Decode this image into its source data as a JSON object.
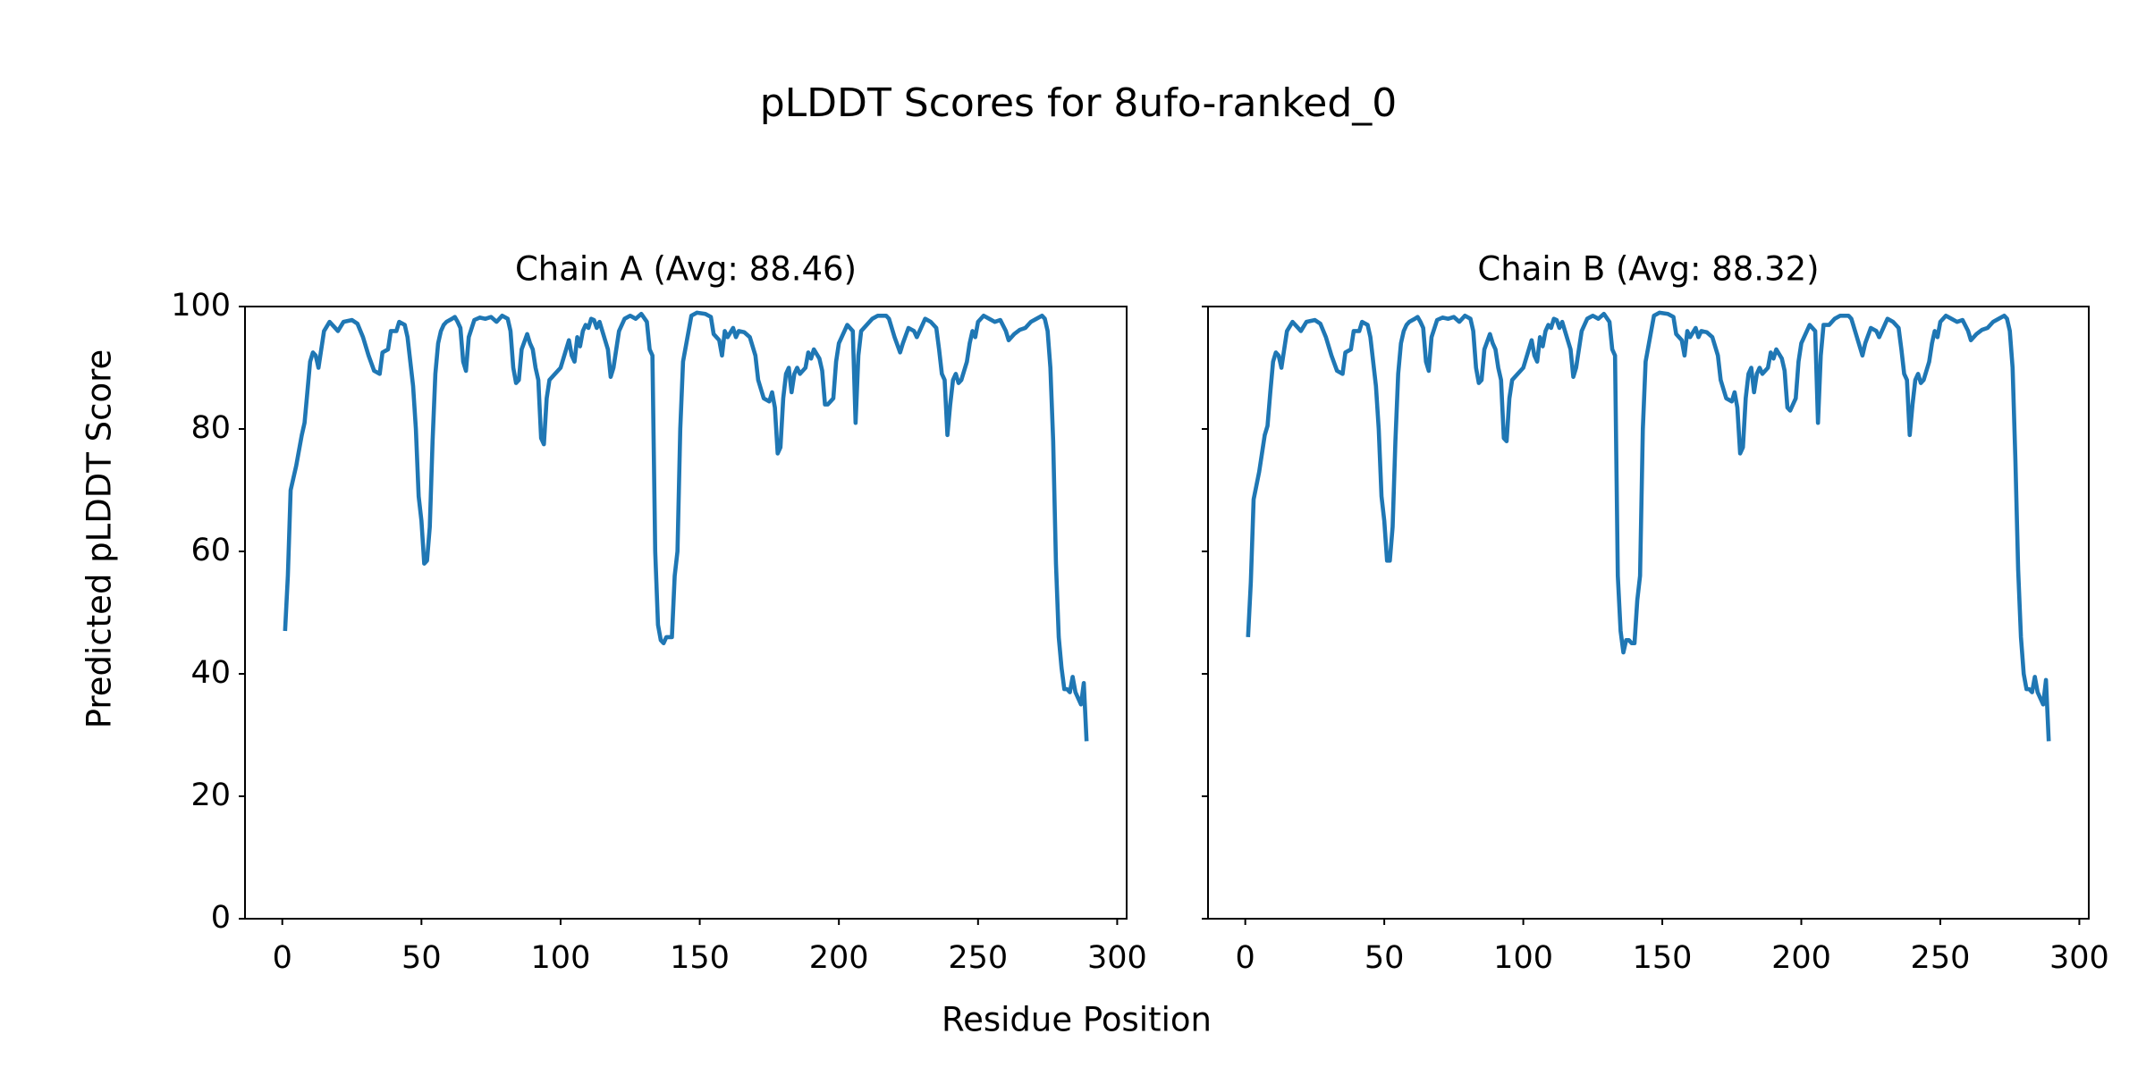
{
  "title": "pLDDT Scores for 8ufo-ranked_0",
  "xlabel": "Residue Position",
  "ylabel": "Predicted pLDDT Score",
  "chart_data": [
    {
      "type": "line",
      "title": "Chain A (Avg: 88.46)",
      "color": "#1f77b4",
      "xlim": [
        -13.4,
        303.4
      ],
      "xticks": [
        0,
        50,
        100,
        150,
        200,
        250,
        300
      ],
      "ylim": [
        0,
        100
      ],
      "yticks": [
        0,
        20,
        40,
        60,
        80,
        100
      ],
      "x": [
        1,
        2,
        3,
        5,
        7,
        8,
        9,
        10,
        11,
        12,
        13,
        14,
        15,
        17,
        18,
        19,
        20,
        22,
        25,
        27,
        29,
        31,
        33,
        35,
        36,
        38,
        39,
        41,
        42,
        44,
        45,
        47,
        48,
        49,
        50,
        51,
        52,
        53,
        54,
        55,
        56,
        57,
        58,
        59,
        61,
        62,
        63,
        64,
        65,
        66,
        67,
        69,
        71,
        73,
        75,
        77,
        79,
        81,
        82,
        83,
        84,
        85,
        86,
        88,
        89,
        90,
        91,
        92,
        93,
        94,
        95,
        96,
        98,
        100,
        101,
        102,
        103,
        104,
        105,
        106,
        107,
        108,
        109,
        110,
        111,
        112,
        113,
        114,
        115,
        117,
        118,
        119,
        121,
        123,
        125,
        127,
        129,
        131,
        132,
        133,
        134,
        135,
        136,
        137,
        138,
        139,
        140,
        141,
        142,
        143,
        144,
        146,
        147,
        149,
        152,
        154,
        155,
        157,
        158,
        159,
        160,
        162,
        163,
        164,
        166,
        168,
        170,
        171,
        172,
        173,
        175,
        176,
        177,
        178,
        179,
        180,
        181,
        182,
        183,
        184,
        185,
        186,
        188,
        189,
        190,
        191,
        193,
        194,
        195,
        196,
        197,
        198,
        199,
        200,
        202,
        203,
        205,
        206,
        207,
        208,
        210,
        212,
        214,
        217,
        218,
        220,
        222,
        223,
        225,
        227,
        228,
        230,
        231,
        233,
        235,
        236,
        237,
        238,
        239,
        240,
        241,
        242,
        243,
        244,
        246,
        247,
        248,
        249,
        250,
        252,
        254,
        256,
        258,
        260,
        261,
        263,
        265,
        267,
        269,
        271,
        273,
        274,
        275,
        276,
        277,
        278,
        279,
        280,
        281,
        282,
        283,
        284,
        285,
        286,
        287,
        288,
        289
      ],
      "values": [
        47,
        56,
        70,
        74,
        79,
        81,
        86,
        91,
        92.5,
        92,
        90,
        93,
        96,
        97.5,
        97,
        96.5,
        96,
        97.5,
        97.8,
        97.2,
        95,
        92,
        89.5,
        89,
        92.5,
        93,
        96,
        96,
        97.5,
        97,
        95,
        87,
        80,
        69,
        65,
        58,
        58.5,
        64,
        78,
        89,
        94,
        96,
        97,
        97.5,
        98,
        98.3,
        97.5,
        96.5,
        91,
        89.5,
        95,
        97.8,
        98.2,
        98,
        98.3,
        97.5,
        98.5,
        98,
        96,
        90,
        87.5,
        88,
        93,
        95.5,
        94,
        93,
        90,
        88,
        78.5,
        77.5,
        85,
        88,
        89,
        90,
        91.5,
        93,
        94.5,
        92,
        91,
        95,
        93.5,
        96,
        97,
        96.5,
        98,
        97.8,
        96.5,
        97.5,
        96,
        93,
        88.5,
        90,
        96,
        98,
        98.5,
        98,
        98.8,
        97.5,
        93,
        92,
        60,
        48,
        45.5,
        45,
        46,
        46,
        46,
        56,
        60,
        80,
        91,
        96,
        98.5,
        99,
        98.8,
        98.3,
        95.5,
        94.5,
        92,
        96,
        95,
        96.5,
        95,
        96,
        95.8,
        95,
        92,
        88,
        86.5,
        85,
        84.5,
        86,
        83.5,
        76,
        77,
        85,
        89,
        90,
        86,
        89,
        90,
        89,
        90,
        92.5,
        91.5,
        93,
        91.5,
        89.5,
        84,
        84,
        84.5,
        85,
        91,
        94,
        96,
        97,
        96,
        81,
        92,
        96,
        97,
        98,
        98.5,
        98.5,
        98,
        95,
        92.5,
        94,
        96.5,
        96,
        95,
        97,
        98,
        97.5,
        96.5,
        93,
        89,
        88,
        79,
        84,
        88,
        89,
        87.5,
        88,
        91,
        94,
        96,
        95,
        97.5,
        98.5,
        98,
        97.5,
        97.8,
        96,
        94.5,
        95.5,
        96.2,
        96.5,
        97.5,
        98,
        98.5,
        98,
        96,
        90,
        78,
        58,
        46,
        41,
        37.5,
        37.5,
        37,
        39.5,
        37,
        36,
        35,
        38.5,
        29
      ]
    },
    {
      "type": "line",
      "title": "Chain B (Avg: 88.32)",
      "color": "#1f77b4",
      "xlim": [
        -13.4,
        303.4
      ],
      "xticks": [
        0,
        50,
        100,
        150,
        200,
        250,
        300
      ],
      "ylim": [
        0,
        100
      ],
      "yticks": [
        0,
        20,
        40,
        60,
        80,
        100
      ],
      "x": [
        1,
        2,
        3,
        5,
        7,
        8,
        9,
        10,
        11,
        12,
        13,
        14,
        15,
        17,
        18,
        19,
        20,
        22,
        25,
        27,
        29,
        31,
        33,
        35,
        36,
        38,
        39,
        41,
        42,
        44,
        45,
        47,
        48,
        49,
        50,
        51,
        52,
        53,
        54,
        55,
        56,
        57,
        58,
        59,
        61,
        62,
        63,
        64,
        65,
        66,
        67,
        69,
        71,
        73,
        75,
        77,
        79,
        81,
        82,
        83,
        84,
        85,
        86,
        88,
        89,
        90,
        91,
        92,
        93,
        94,
        95,
        96,
        98,
        100,
        101,
        102,
        103,
        104,
        105,
        106,
        107,
        108,
        109,
        110,
        111,
        112,
        113,
        114,
        115,
        117,
        118,
        119,
        121,
        123,
        125,
        127,
        129,
        131,
        132,
        133,
        134,
        135,
        136,
        137,
        138,
        139,
        140,
        141,
        142,
        143,
        144,
        146,
        147,
        149,
        152,
        154,
        155,
        157,
        158,
        159,
        160,
        162,
        163,
        164,
        166,
        168,
        170,
        171,
        172,
        173,
        175,
        176,
        177,
        178,
        179,
        180,
        181,
        182,
        183,
        184,
        185,
        186,
        188,
        189,
        190,
        191,
        193,
        194,
        195,
        196,
        197,
        198,
        199,
        200,
        202,
        203,
        205,
        206,
        207,
        208,
        210,
        212,
        214,
        217,
        218,
        220,
        222,
        223,
        225,
        227,
        228,
        230,
        231,
        233,
        235,
        236,
        237,
        238,
        239,
        240,
        241,
        242,
        243,
        244,
        246,
        247,
        248,
        249,
        250,
        252,
        254,
        256,
        258,
        260,
        261,
        263,
        265,
        267,
        269,
        271,
        273,
        274,
        275,
        276,
        277,
        278,
        279,
        280,
        281,
        282,
        283,
        284,
        285,
        286,
        287,
        288,
        289
      ],
      "values": [
        46,
        55,
        68.5,
        73,
        79,
        80.5,
        86,
        91,
        92.5,
        92,
        90,
        93,
        96,
        97.5,
        97,
        96.5,
        96,
        97.5,
        97.8,
        97.2,
        95,
        92,
        89.5,
        89,
        92.5,
        93,
        96,
        96,
        97.5,
        97,
        95,
        87,
        80,
        69,
        65,
        58.5,
        58.5,
        64,
        78,
        89,
        94,
        96,
        97,
        97.5,
        98,
        98.3,
        97.5,
        96.5,
        91,
        89.5,
        95,
        97.8,
        98.2,
        98,
        98.3,
        97.5,
        98.5,
        98,
        96,
        90,
        87.5,
        88,
        93,
        95.5,
        94,
        93,
        90,
        88,
        78.5,
        78,
        85,
        88,
        89,
        90,
        91.5,
        93,
        94.5,
        92,
        91,
        95,
        93.5,
        96,
        97,
        96.5,
        98,
        97.8,
        96.5,
        97.5,
        96,
        93,
        88.5,
        90,
        96,
        98,
        98.5,
        98,
        98.8,
        97.5,
        93,
        92,
        56,
        47,
        43.5,
        45.5,
        45.5,
        45,
        45,
        52,
        56,
        80,
        91,
        96,
        98.5,
        99,
        98.8,
        98.3,
        95.5,
        94.5,
        92,
        96,
        95,
        96.5,
        95,
        96,
        95.8,
        95,
        92,
        88,
        86.5,
        85,
        84.5,
        86,
        83.5,
        76,
        77,
        85,
        89,
        90,
        86,
        89,
        90,
        89,
        90,
        92.5,
        91.5,
        93,
        91.5,
        89.5,
        83.5,
        83,
        84,
        85,
        91,
        94,
        96,
        97,
        96,
        81,
        92,
        97,
        97,
        98,
        98.5,
        98.5,
        98,
        95,
        92,
        94,
        96.5,
        96,
        95,
        97,
        98,
        97.5,
        96.5,
        93,
        89,
        88,
        79,
        84,
        88,
        89,
        87.5,
        88,
        91,
        94,
        96,
        95,
        97.5,
        98.5,
        98,
        97.5,
        97.8,
        96,
        94.5,
        95.5,
        96.2,
        96.5,
        97.5,
        98,
        98.5,
        98,
        96,
        90,
        75,
        57,
        46,
        40,
        37.5,
        37.5,
        37,
        39.5,
        37,
        36,
        35,
        39,
        29
      ]
    }
  ]
}
